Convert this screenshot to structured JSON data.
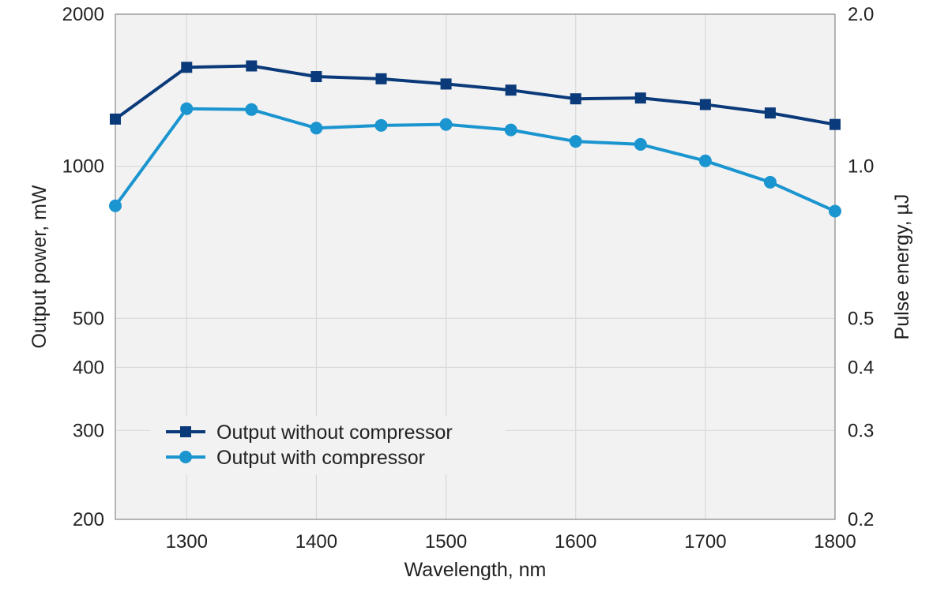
{
  "chart_data": {
    "type": "line",
    "xlabel": "Wavelength, nm",
    "ylabel": "Output power, mW",
    "y2label": "Pulse energy, µJ",
    "xlim": [
      1245,
      1800
    ],
    "ylim": [
      200,
      2000
    ],
    "y2lim": [
      0.2,
      2.0
    ],
    "yscale": "log",
    "x_ticks": [
      1300,
      1400,
      1500,
      1600,
      1700,
      1800
    ],
    "x_tick_labels": [
      "1300",
      "1400",
      "1500",
      "1600",
      "1700",
      "1800"
    ],
    "y_ticks": [
      200,
      300,
      400,
      500,
      1000,
      2000
    ],
    "y_tick_labels": [
      "200",
      "300",
      "400",
      "500",
      "1000",
      "2000"
    ],
    "y2_ticks": [
      0.2,
      0.3,
      0.4,
      0.5,
      1.0,
      2.0
    ],
    "y2_tick_labels": [
      "0.2",
      "0.3",
      "0.4",
      "0.5",
      "1.0",
      "2.0"
    ],
    "grid": true,
    "legend_position": "bottom-left",
    "x": [
      1245,
      1300,
      1350,
      1400,
      1450,
      1500,
      1550,
      1600,
      1650,
      1700,
      1750,
      1800
    ],
    "series": [
      {
        "name": "Output without compressor",
        "color": "#0b3a7a",
        "marker": "square",
        "values": [
          1240,
          1570,
          1580,
          1505,
          1490,
          1455,
          1415,
          1360,
          1365,
          1325,
          1275,
          1210
        ]
      },
      {
        "name": "Output with compressor",
        "color": "#1b95cf",
        "marker": "circle",
        "values": [
          835,
          1300,
          1295,
          1190,
          1205,
          1210,
          1180,
          1120,
          1105,
          1025,
          930,
          815
        ]
      }
    ]
  }
}
